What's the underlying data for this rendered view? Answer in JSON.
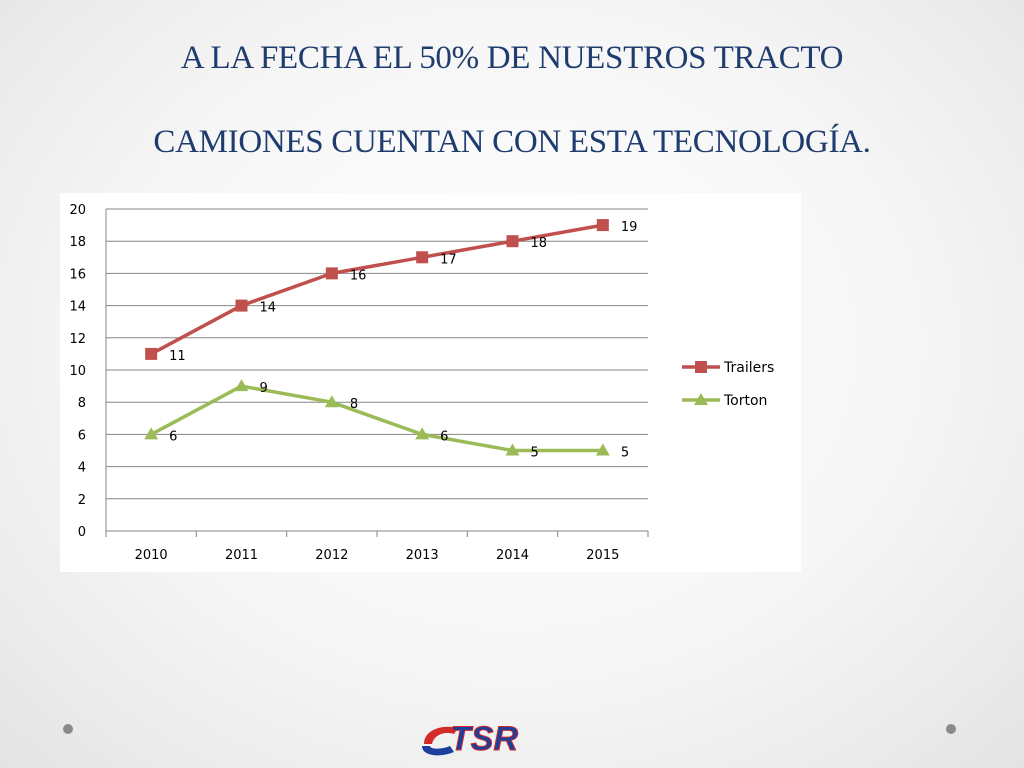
{
  "slide": {
    "title_line1": "A LA FECHA EL 50% DE NUESTROS TRACTO",
    "title_line2": "CAMIONES CUENTAN CON ESTA TECNOLOGÍA.",
    "logo_text": "TSR"
  },
  "colors": {
    "title": "#1f3c6e",
    "trailers": "#c0504d",
    "torton": "#9bbb59",
    "grid": "#868686",
    "logo_blue": "#1b3f9a",
    "logo_red": "#d42a2a"
  },
  "chart_data": {
    "type": "line",
    "title": "",
    "xlabel": "",
    "ylabel": "",
    "categories": [
      "2010",
      "2011",
      "2012",
      "2013",
      "2014",
      "2015"
    ],
    "ylim": [
      0,
      20
    ],
    "yticks": [
      "0",
      "2",
      "4",
      "6",
      "8",
      "10",
      "12",
      "14",
      "16",
      "18",
      "20"
    ],
    "grid": true,
    "legend_position": "right",
    "series": [
      {
        "name": "Trailers",
        "marker": "square",
        "values": [
          11,
          14,
          16,
          17,
          18,
          19
        ]
      },
      {
        "name": "Torton",
        "marker": "triangle",
        "values": [
          6,
          9,
          8,
          6,
          5,
          5
        ]
      }
    ]
  }
}
